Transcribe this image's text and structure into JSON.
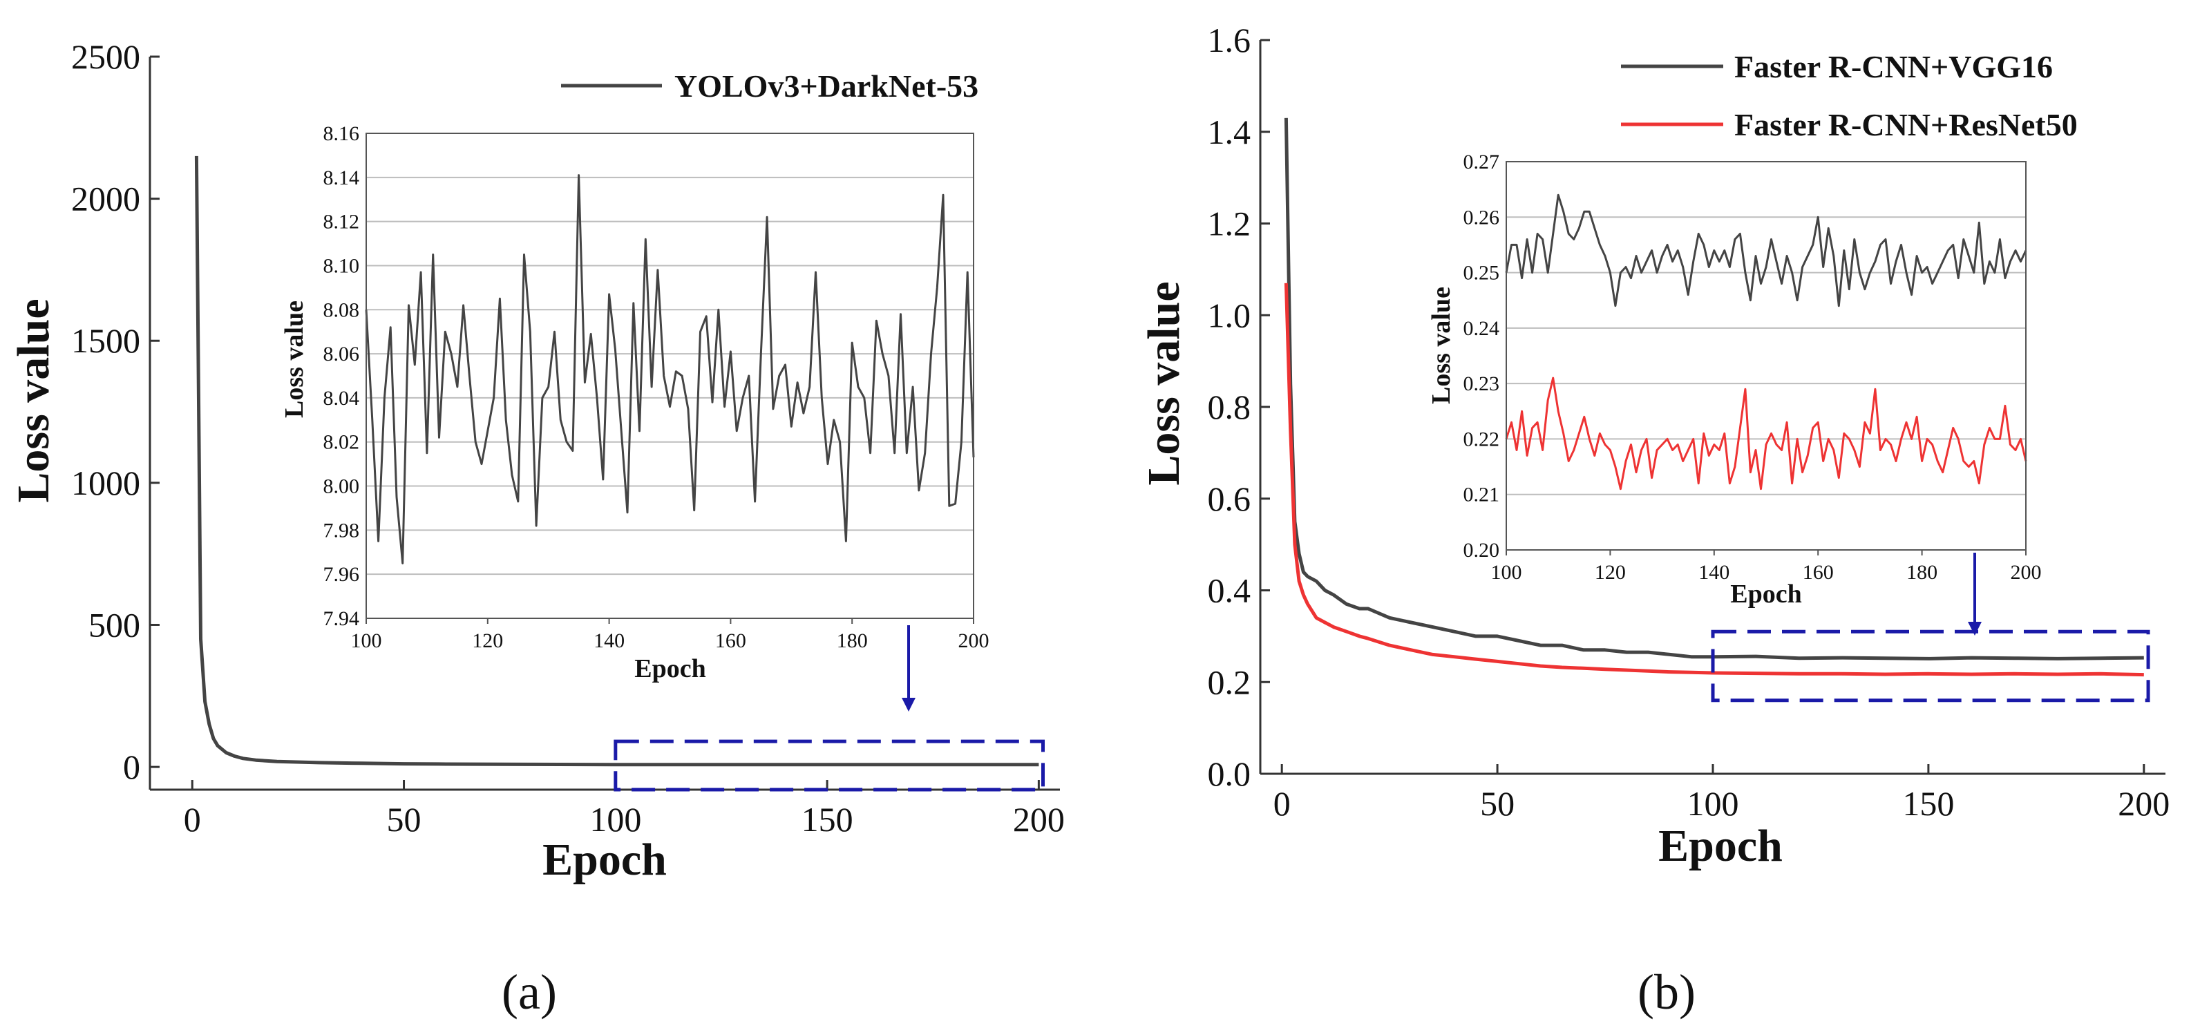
{
  "chart_data": [
    {
      "panel": "(a)",
      "type": "line",
      "xlabel": "Epoch",
      "ylabel": "Loss value",
      "xlim": [
        -10,
        205
      ],
      "ylim": [
        -80,
        2500
      ],
      "xticks": [
        0,
        50,
        100,
        150,
        200
      ],
      "yticks": [
        0,
        500,
        1000,
        1500,
        2000,
        2500
      ],
      "series": [
        {
          "name": "YOLOv3+DarkNet-53",
          "color": "#444444",
          "x": [
            1,
            2,
            3,
            4,
            5,
            6,
            8,
            10,
            12,
            15,
            20,
            30,
            40,
            50,
            60,
            80,
            100,
            120,
            150,
            180,
            200
          ],
          "y": [
            2150,
            450,
            230,
            150,
            100,
            75,
            50,
            38,
            30,
            24,
            19,
            15,
            13,
            11,
            10,
            9,
            8,
            8,
            8,
            8,
            8
          ]
        }
      ],
      "highlight_box": {
        "x": [
          100,
          201
        ],
        "y": [
          -80,
          90
        ]
      },
      "inset": {
        "xlabel": "Epoch",
        "ylabel": "Loss value",
        "xlim": [
          100,
          200
        ],
        "ylim": [
          7.94,
          8.16
        ],
        "xticks": [
          100,
          120,
          140,
          160,
          180,
          200
        ],
        "yticks": [
          7.94,
          7.96,
          7.98,
          8.0,
          8.02,
          8.04,
          8.06,
          8.08,
          8.1,
          8.12,
          8.14,
          8.16
        ],
        "ytick_labels": [
          "7.94",
          "7.96",
          "7.98",
          "8.00",
          "8.02",
          "8.04",
          "8.06",
          "8.08",
          "8.10",
          "8.12",
          "8.14",
          "8.16"
        ],
        "grid": true,
        "series": [
          {
            "name": "YOLOv3+DarkNet-53",
            "color": "#444444",
            "x": [
              100,
              101,
              102,
              103,
              104,
              105,
              106,
              107,
              108,
              109,
              110,
              111,
              112,
              113,
              114,
              115,
              116,
              117,
              118,
              119,
              120,
              121,
              122,
              123,
              124,
              125,
              126,
              127,
              128,
              129,
              130,
              131,
              132,
              133,
              134,
              135,
              136,
              137,
              138,
              139,
              140,
              141,
              142,
              143,
              144,
              145,
              146,
              147,
              148,
              149,
              150,
              151,
              152,
              153,
              154,
              155,
              156,
              157,
              158,
              159,
              160,
              161,
              162,
              163,
              164,
              165,
              166,
              167,
              168,
              169,
              170,
              171,
              172,
              173,
              174,
              175,
              176,
              177,
              178,
              179,
              180,
              181,
              182,
              183,
              184,
              185,
              186,
              187,
              188,
              189,
              190,
              191,
              192,
              193,
              194,
              195,
              196,
              197,
              198,
              199,
              200
            ],
            "y": [
              8.08,
              8.03,
              7.975,
              8.04,
              8.072,
              7.995,
              7.965,
              8.082,
              8.055,
              8.097,
              8.015,
              8.105,
              8.022,
              8.07,
              8.06,
              8.045,
              8.082,
              8.05,
              8.02,
              8.01,
              8.025,
              8.04,
              8.085,
              8.03,
              8.005,
              7.993,
              8.105,
              8.07,
              7.982,
              8.04,
              8.045,
              8.07,
              8.03,
              8.02,
              8.016,
              8.141,
              8.047,
              8.069,
              8.04,
              8.003,
              8.087,
              8.062,
              8.025,
              7.988,
              8.083,
              8.025,
              8.112,
              8.045,
              8.098,
              8.05,
              8.036,
              8.052,
              8.05,
              8.035,
              7.989,
              8.07,
              8.077,
              8.038,
              8.08,
              8.036,
              8.061,
              8.025,
              8.04,
              8.05,
              7.993,
              8.06,
              8.122,
              8.035,
              8.05,
              8.055,
              8.027,
              8.047,
              8.033,
              8.045,
              8.097,
              8.04,
              8.01,
              8.03,
              8.02,
              7.975,
              8.065,
              8.045,
              8.04,
              8.015,
              8.075,
              8.06,
              8.05,
              8.015,
              8.078,
              8.015,
              8.045,
              7.998,
              8.015,
              8.06,
              8.09,
              8.132,
              7.991,
              7.992,
              8.02,
              8.097,
              8.013
            ]
          }
        ]
      }
    },
    {
      "panel": "(b)",
      "type": "line",
      "xlabel": "Epoch",
      "ylabel": "Loss value",
      "xlim": [
        -5,
        205
      ],
      "ylim": [
        0,
        1.6
      ],
      "xticks": [
        0,
        50,
        100,
        150,
        200
      ],
      "yticks": [
        0.0,
        0.2,
        0.4,
        0.6,
        0.8,
        1.0,
        1.2,
        1.4,
        1.6
      ],
      "ytick_labels": [
        "0.0",
        "0.2",
        "0.4",
        "0.6",
        "0.8",
        "1.0",
        "1.2",
        "1.4",
        "1.6"
      ],
      "series": [
        {
          "name": "Faster R-CNN+VGG16",
          "color": "#444444",
          "x": [
            1,
            2,
            3,
            4,
            5,
            6,
            8,
            10,
            12,
            15,
            18,
            20,
            25,
            30,
            35,
            40,
            45,
            50,
            55,
            60,
            65,
            70,
            75,
            80,
            85,
            90,
            95,
            100,
            110,
            120,
            130,
            140,
            150,
            160,
            170,
            180,
            190,
            200
          ],
          "y": [
            1.43,
            0.85,
            0.55,
            0.48,
            0.44,
            0.43,
            0.42,
            0.4,
            0.39,
            0.37,
            0.36,
            0.36,
            0.34,
            0.33,
            0.32,
            0.31,
            0.3,
            0.3,
            0.29,
            0.28,
            0.28,
            0.27,
            0.27,
            0.265,
            0.265,
            0.26,
            0.255,
            0.255,
            0.256,
            0.252,
            0.253,
            0.252,
            0.251,
            0.253,
            0.252,
            0.251,
            0.252,
            0.253
          ]
        },
        {
          "name": "Faster R-CNN+ResNet50",
          "color": "#ee3333",
          "x": [
            1,
            2,
            3,
            4,
            5,
            6,
            8,
            10,
            12,
            15,
            18,
            20,
            25,
            30,
            35,
            40,
            45,
            50,
            55,
            60,
            65,
            70,
            75,
            80,
            85,
            90,
            95,
            100,
            110,
            120,
            130,
            140,
            150,
            160,
            170,
            180,
            190,
            200
          ],
          "y": [
            1.07,
            0.75,
            0.5,
            0.42,
            0.39,
            0.37,
            0.34,
            0.33,
            0.32,
            0.31,
            0.3,
            0.295,
            0.28,
            0.27,
            0.26,
            0.255,
            0.25,
            0.245,
            0.24,
            0.235,
            0.232,
            0.23,
            0.228,
            0.226,
            0.224,
            0.222,
            0.221,
            0.22,
            0.219,
            0.218,
            0.218,
            0.217,
            0.218,
            0.217,
            0.218,
            0.217,
            0.218,
            0.216
          ]
        }
      ],
      "highlight_box": {
        "x": [
          100,
          201
        ],
        "y": [
          0.16,
          0.31
        ]
      },
      "inset": {
        "xlabel": "Epoch",
        "ylabel": "Loss value",
        "xlim": [
          100,
          200
        ],
        "ylim": [
          0.2,
          0.27
        ],
        "xticks": [
          100,
          120,
          140,
          160,
          180,
          200
        ],
        "yticks": [
          0.2,
          0.21,
          0.22,
          0.23,
          0.24,
          0.25,
          0.26,
          0.27
        ],
        "ytick_labels": [
          "0.20",
          "0.21",
          "0.22",
          "0.23",
          "0.24",
          "0.25",
          "0.26",
          "0.27"
        ],
        "grid": true,
        "series": [
          {
            "name": "Faster R-CNN+VGG16",
            "color": "#444444",
            "x": [
              100,
              101,
              102,
              103,
              104,
              105,
              106,
              107,
              108,
              109,
              110,
              111,
              112,
              113,
              114,
              115,
              116,
              117,
              118,
              119,
              120,
              121,
              122,
              123,
              124,
              125,
              126,
              127,
              128,
              129,
              130,
              131,
              132,
              133,
              134,
              135,
              136,
              137,
              138,
              139,
              140,
              141,
              142,
              143,
              144,
              145,
              146,
              147,
              148,
              149,
              150,
              151,
              152,
              153,
              154,
              155,
              156,
              157,
              158,
              159,
              160,
              161,
              162,
              163,
              164,
              165,
              166,
              167,
              168,
              169,
              170,
              171,
              172,
              173,
              174,
              175,
              176,
              177,
              178,
              179,
              180,
              181,
              182,
              183,
              184,
              185,
              186,
              187,
              188,
              189,
              190,
              191,
              192,
              193,
              194,
              195,
              196,
              197,
              198,
              199,
              200
            ],
            "y": [
              0.25,
              0.255,
              0.255,
              0.249,
              0.256,
              0.25,
              0.257,
              0.256,
              0.25,
              0.257,
              0.264,
              0.261,
              0.257,
              0.256,
              0.258,
              0.261,
              0.261,
              0.258,
              0.255,
              0.253,
              0.25,
              0.244,
              0.25,
              0.251,
              0.249,
              0.253,
              0.25,
              0.252,
              0.254,
              0.25,
              0.253,
              0.255,
              0.252,
              0.254,
              0.251,
              0.246,
              0.252,
              0.257,
              0.255,
              0.251,
              0.254,
              0.252,
              0.254,
              0.251,
              0.256,
              0.257,
              0.25,
              0.245,
              0.253,
              0.248,
              0.251,
              0.256,
              0.252,
              0.248,
              0.253,
              0.25,
              0.245,
              0.251,
              0.253,
              0.255,
              0.26,
              0.251,
              0.258,
              0.253,
              0.244,
              0.254,
              0.247,
              0.256,
              0.25,
              0.247,
              0.25,
              0.252,
              0.255,
              0.256,
              0.248,
              0.252,
              0.255,
              0.25,
              0.246,
              0.253,
              0.25,
              0.251,
              0.248,
              0.25,
              0.252,
              0.254,
              0.255,
              0.249,
              0.256,
              0.253,
              0.25,
              0.259,
              0.248,
              0.252,
              0.25,
              0.256,
              0.249,
              0.252,
              0.254,
              0.252,
              0.254
            ]
          },
          {
            "name": "Faster R-CNN+ResNet50",
            "color": "#ee3333",
            "x": [
              100,
              101,
              102,
              103,
              104,
              105,
              106,
              107,
              108,
              109,
              110,
              111,
              112,
              113,
              114,
              115,
              116,
              117,
              118,
              119,
              120,
              121,
              122,
              123,
              124,
              125,
              126,
              127,
              128,
              129,
              130,
              131,
              132,
              133,
              134,
              135,
              136,
              137,
              138,
              139,
              140,
              141,
              142,
              143,
              144,
              145,
              146,
              147,
              148,
              149,
              150,
              151,
              152,
              153,
              154,
              155,
              156,
              157,
              158,
              159,
              160,
              161,
              162,
              163,
              164,
              165,
              166,
              167,
              168,
              169,
              170,
              171,
              172,
              173,
              174,
              175,
              176,
              177,
              178,
              179,
              180,
              181,
              182,
              183,
              184,
              185,
              186,
              187,
              188,
              189,
              190,
              191,
              192,
              193,
              194,
              195,
              196,
              197,
              198,
              199,
              200
            ],
            "y": [
              0.22,
              0.223,
              0.218,
              0.225,
              0.217,
              0.222,
              0.223,
              0.218,
              0.227,
              0.231,
              0.225,
              0.221,
              0.216,
              0.218,
              0.221,
              0.224,
              0.22,
              0.217,
              0.221,
              0.219,
              0.218,
              0.215,
              0.211,
              0.216,
              0.219,
              0.214,
              0.218,
              0.22,
              0.213,
              0.218,
              0.219,
              0.22,
              0.218,
              0.219,
              0.216,
              0.218,
              0.22,
              0.212,
              0.221,
              0.217,
              0.219,
              0.218,
              0.221,
              0.212,
              0.215,
              0.222,
              0.229,
              0.214,
              0.218,
              0.211,
              0.219,
              0.221,
              0.219,
              0.218,
              0.223,
              0.212,
              0.22,
              0.214,
              0.217,
              0.222,
              0.223,
              0.216,
              0.22,
              0.218,
              0.213,
              0.221,
              0.22,
              0.218,
              0.215,
              0.223,
              0.221,
              0.229,
              0.218,
              0.22,
              0.219,
              0.216,
              0.22,
              0.223,
              0.22,
              0.224,
              0.216,
              0.22,
              0.219,
              0.216,
              0.214,
              0.218,
              0.222,
              0.22,
              0.216,
              0.215,
              0.216,
              0.212,
              0.219,
              0.222,
              0.22,
              0.22,
              0.226,
              0.219,
              0.218,
              0.22,
              0.216
            ]
          }
        ]
      }
    }
  ]
}
